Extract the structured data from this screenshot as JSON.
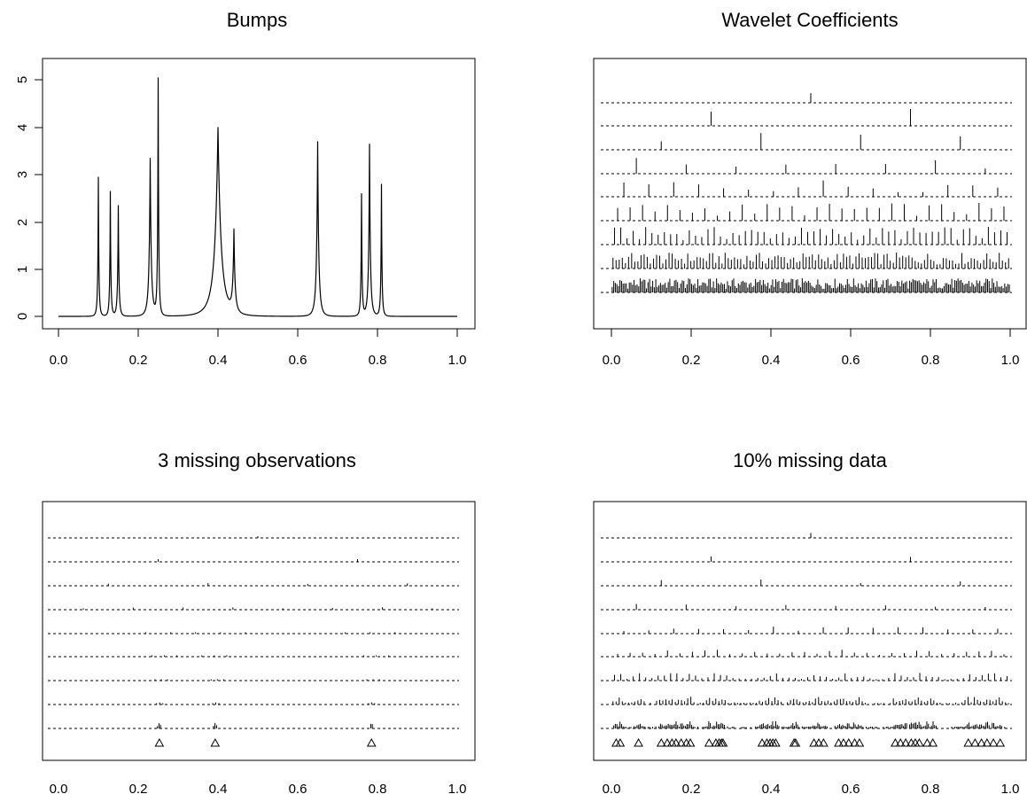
{
  "chart_data": [
    {
      "type": "line",
      "title": "Bumps",
      "xlabel": "",
      "ylabel": "",
      "xlim": [
        0,
        1
      ],
      "ylim": [
        0,
        5
      ],
      "xticks": [
        "0.0",
        "0.2",
        "0.4",
        "0.6",
        "0.8",
        "1.0"
      ],
      "yticks": [
        "0",
        "1",
        "2",
        "3",
        "4",
        "5"
      ],
      "grid": false,
      "bumps": [
        {
          "position": 0.1,
          "height": 2.95
        },
        {
          "position": 0.13,
          "height": 2.65
        },
        {
          "position": 0.15,
          "height": 2.35
        },
        {
          "position": 0.23,
          "height": 3.35
        },
        {
          "position": 0.25,
          "height": 5.05
        },
        {
          "position": 0.4,
          "height": 4.0
        },
        {
          "position": 0.44,
          "height": 1.85
        },
        {
          "position": 0.65,
          "height": 3.7
        },
        {
          "position": 0.76,
          "height": 2.6
        },
        {
          "position": 0.78,
          "height": 3.65
        },
        {
          "position": 0.81,
          "height": 2.8
        }
      ]
    },
    {
      "type": "wavelet-coefficients",
      "title": "Wavelet Coefficients",
      "xlim": [
        0,
        1
      ],
      "xticks": [
        "0.0",
        "0.2",
        "0.4",
        "0.6",
        "0.8",
        "1.0"
      ],
      "levels": 9,
      "missing_positions": []
    },
    {
      "type": "wavelet-coefficients",
      "title": "3 missing observations",
      "xlim": [
        0,
        1
      ],
      "xticks": [
        "0.0",
        "0.2",
        "0.4",
        "0.6",
        "0.8",
        "1.0"
      ],
      "levels": 9,
      "missing_positions": [
        0.253,
        0.393,
        0.785
      ]
    },
    {
      "type": "wavelet-coefficients",
      "title": "10% missing data",
      "xlim": [
        0,
        1
      ],
      "xticks": [
        "0.0",
        "0.2",
        "0.4",
        "0.6",
        "0.8",
        "1.0"
      ],
      "levels": 9,
      "missing_fraction": 0.1,
      "missing_positions": [
        0.012,
        0.022,
        0.068,
        0.125,
        0.14,
        0.152,
        0.162,
        0.175,
        0.188,
        0.198,
        0.245,
        0.262,
        0.27,
        0.276,
        0.28,
        0.378,
        0.39,
        0.398,
        0.405,
        0.412,
        0.458,
        0.462,
        0.508,
        0.52,
        0.532,
        0.57,
        0.582,
        0.595,
        0.61,
        0.622,
        0.712,
        0.725,
        0.738,
        0.752,
        0.762,
        0.772,
        0.792,
        0.806,
        0.895,
        0.912,
        0.928,
        0.942,
        0.958,
        0.975
      ]
    }
  ]
}
